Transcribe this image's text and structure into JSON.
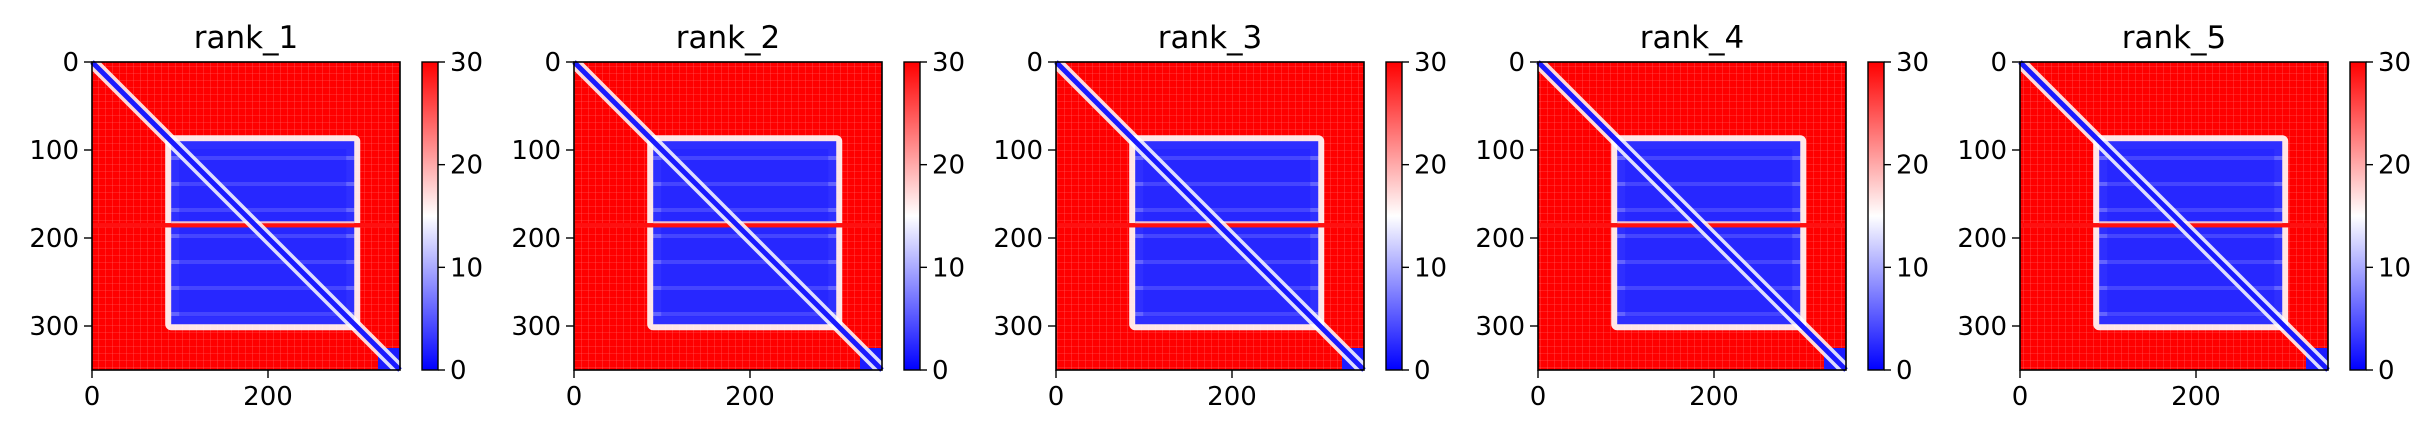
{
  "chart_data": [
    {
      "type": "heatmap",
      "title": "rank_1",
      "xticks": [
        "0",
        "200"
      ],
      "xtick_values": [
        0,
        200
      ],
      "yticks": [
        "0",
        "100",
        "200",
        "300"
      ],
      "ytick_values": [
        0,
        100,
        200,
        300
      ],
      "xlim": [
        0,
        350
      ],
      "ylim": [
        0,
        350
      ],
      "colorbar": {
        "ticks": [
          "0",
          "10",
          "20",
          "30"
        ],
        "values": [
          0,
          10,
          20,
          30
        ],
        "range": [
          0,
          30
        ],
        "colormap": "bwr"
      }
    },
    {
      "type": "heatmap",
      "title": "rank_2",
      "xticks": [
        "0",
        "200"
      ],
      "xtick_values": [
        0,
        200
      ],
      "yticks": [
        "0",
        "100",
        "200",
        "300"
      ],
      "ytick_values": [
        0,
        100,
        200,
        300
      ],
      "xlim": [
        0,
        350
      ],
      "ylim": [
        0,
        350
      ],
      "colorbar": {
        "ticks": [
          "0",
          "10",
          "20",
          "30"
        ],
        "values": [
          0,
          10,
          20,
          30
        ],
        "range": [
          0,
          30
        ],
        "colormap": "bwr"
      }
    },
    {
      "type": "heatmap",
      "title": "rank_3",
      "xticks": [
        "0",
        "200"
      ],
      "xtick_values": [
        0,
        200
      ],
      "yticks": [
        "0",
        "100",
        "200",
        "300"
      ],
      "ytick_values": [
        0,
        100,
        200,
        300
      ],
      "xlim": [
        0,
        350
      ],
      "ylim": [
        0,
        350
      ],
      "colorbar": {
        "ticks": [
          "0",
          "10",
          "20",
          "30"
        ],
        "values": [
          0,
          10,
          20,
          30
        ],
        "range": [
          0,
          30
        ],
        "colormap": "bwr"
      }
    },
    {
      "type": "heatmap",
      "title": "rank_4",
      "xticks": [
        "0",
        "200"
      ],
      "xtick_values": [
        0,
        200
      ],
      "yticks": [
        "0",
        "100",
        "200",
        "300"
      ],
      "ytick_values": [
        0,
        100,
        200,
        300
      ],
      "xlim": [
        0,
        350
      ],
      "ylim": [
        0,
        350
      ],
      "colorbar": {
        "ticks": [
          "0",
          "10",
          "20",
          "30"
        ],
        "values": [
          0,
          10,
          20,
          30
        ],
        "range": [
          0,
          30
        ],
        "colormap": "bwr"
      }
    },
    {
      "type": "heatmap",
      "title": "rank_5",
      "xticks": [
        "0",
        "200"
      ],
      "xtick_values": [
        0,
        200
      ],
      "yticks": [
        "0",
        "100",
        "200",
        "300"
      ],
      "ytick_values": [
        0,
        100,
        200,
        300
      ],
      "xlim": [
        0,
        350
      ],
      "ylim": [
        0,
        350
      ],
      "colorbar": {
        "ticks": [
          "0",
          "10",
          "20",
          "30"
        ],
        "values": [
          0,
          10,
          20,
          30
        ],
        "range": [
          0,
          30
        ],
        "colormap": "bwr"
      }
    }
  ],
  "colors": {
    "high": "#ff0000",
    "mid": "#ffffff",
    "low": "#0000ff",
    "block_low": "#3a3aff",
    "diagonal": "#1a1aff"
  }
}
